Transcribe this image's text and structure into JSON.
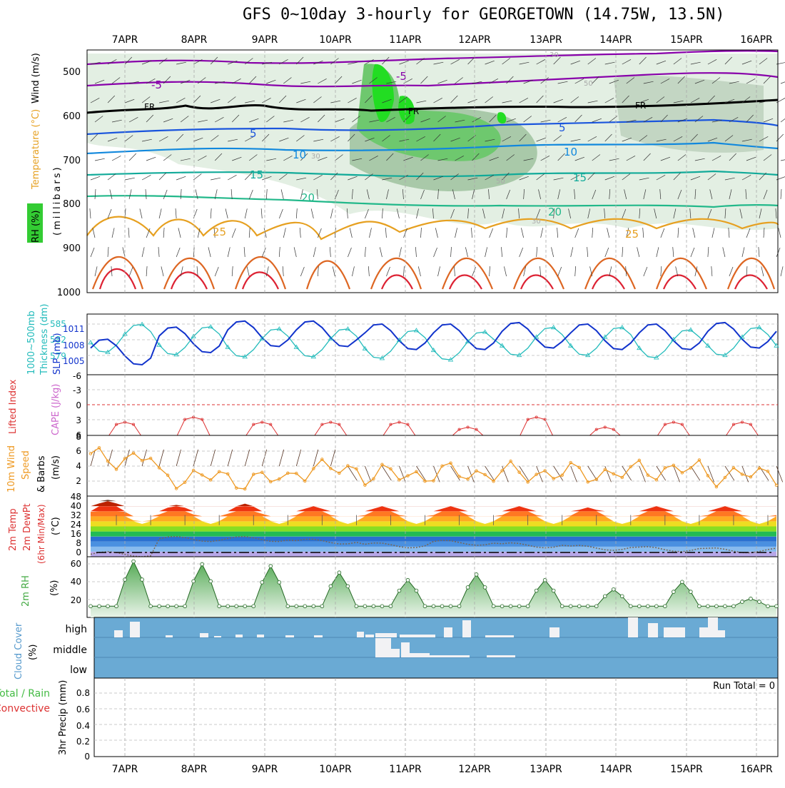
{
  "title": "GFS 0~10day 3-hourly for GEORGETOWN (14.75W, 13.5N)",
  "dates": [
    "7APR",
    "8APR",
    "9APR",
    "10APR",
    "11APR",
    "12APR",
    "13APR",
    "14APR",
    "15APR",
    "16APR"
  ],
  "run_total": "Run Total = 0",
  "colors": {
    "rh_green": "#33cc33",
    "rh_light": "#cfe8cf",
    "temp_purple": "#8800aa",
    "temp_blue": "#1a55dd",
    "temp_cyan": "#1188dd",
    "temp_teal": "#11aa99",
    "temp_orange": "#e6a020",
    "temp_red": "#dd2233",
    "slp_blue": "#1133cc",
    "thickness_cyan": "#22bbbb",
    "li_red": "#dd3333",
    "wind_orange": "#ee9922",
    "cloud_blue": "#6aaad4",
    "rh2m_green": "#44aa44"
  },
  "panels": {
    "upper": {
      "ylabel_rh": "RH (%)",
      "ylabel_temp": "Temperature (°C)",
      "ylabel_wind": "Wind (m/s)",
      "ylabel_units": "(millibars)",
      "yticks": [
        "500",
        "600",
        "700",
        "800",
        "900",
        "1000"
      ],
      "contour_labels": [
        "-5",
        "-5",
        "FR",
        "FR",
        "FR",
        "5",
        "5",
        "10",
        "10",
        "15",
        "15",
        "20",
        "20",
        "25",
        "25",
        "30",
        "30",
        "30",
        "50",
        "50"
      ]
    },
    "slp": {
      "ylabel_a": "1000~500mb",
      "ylabel_b": "Thickness (dm)",
      "ylabel_c": "SLP (mb)",
      "left_ticks": [
        "585",
        "582",
        "579"
      ],
      "right_ticks": [
        "1011",
        "1008",
        "1005"
      ]
    },
    "li": {
      "ylabel_a": "Lifted Index",
      "ylabel_b": "CAPE (J/kg)",
      "ticks": [
        "-6",
        "-3",
        "0",
        "3",
        "6"
      ]
    },
    "wind10": {
      "ylabel_a": "10m Wind",
      "ylabel_b": "Speed",
      "ylabel_c": "& Barbs",
      "ylabel_d": "(m/s)",
      "ticks": [
        "8",
        "6",
        "4",
        "2"
      ]
    },
    "temp2m": {
      "ylabel_a": "2m Temp",
      "ylabel_b": "2m DewPt",
      "ylabel_c": "(6hr Min/Max)",
      "ylabel_d": "(°C)",
      "ticks": [
        "48",
        "40",
        "32",
        "24",
        "16",
        "8",
        "0"
      ]
    },
    "rh2m": {
      "ylabel_a": "2m RH",
      "ylabel_b": "(%)",
      "ticks": [
        "60",
        "40",
        "20"
      ]
    },
    "cloud": {
      "ylabel_a": "Cloud Cover",
      "ylabel_b": "(%)",
      "levels": [
        "high",
        "middle",
        "low"
      ]
    },
    "precip": {
      "ylabel_a": "Total / Rain",
      "ylabel_b": "Convective",
      "ylabel_c": "3hr Precip (mm)",
      "ticks": [
        "0.8",
        "0.6",
        "0.4",
        "0.2",
        "0"
      ]
    }
  },
  "chart_data": [
    {
      "type": "line",
      "title": "1000~500mb Thickness (dm) / SLP (mb)",
      "x": [
        "7APR",
        "8APR",
        "9APR",
        "10APR",
        "11APR",
        "12APR",
        "13APR",
        "14APR",
        "15APR",
        "16APR"
      ],
      "series": [
        {
          "name": "SLP (mb)",
          "values": [
            1005.5,
            1009.5,
            1011.5,
            1011.5,
            1010.5,
            1010.5,
            1011,
            1010.5,
            1010.5,
            1011
          ]
        },
        {
          "name": "1000~500mb Thickness (dm)",
          "values": [
            585.3,
            584.5,
            583.8,
            583.8,
            583.3,
            582.8,
            584.3,
            584.3,
            583.5,
            584.3
          ]
        }
      ]
    },
    {
      "type": "line",
      "title": "Lifted Index",
      "x": [
        "7APR",
        "8APR",
        "9APR",
        "10APR",
        "11APR",
        "12APR",
        "13APR",
        "14APR",
        "15APR",
        "16APR"
      ],
      "series": [
        {
          "name": "Lifted Index",
          "values": [
            5,
            4,
            5,
            5,
            5,
            6,
            4,
            6,
            5,
            5
          ]
        }
      ],
      "ylim": [
        -6,
        6
      ]
    },
    {
      "type": "line",
      "title": "10m Wind Speed (m/s)",
      "x": [
        "7APR",
        "8APR",
        "9APR",
        "10APR",
        "11APR",
        "12APR",
        "13APR",
        "14APR",
        "15APR",
        "16APR"
      ],
      "series": [
        {
          "name": "10m Wind Speed",
          "values": [
            5,
            2.5,
            2.2,
            3.5,
            2.8,
            3,
            3,
            3,
            3.5,
            2.8
          ]
        }
      ],
      "ylim": [
        0,
        8
      ]
    },
    {
      "type": "area",
      "title": "2m Temp (°C)",
      "x": [
        "7APR",
        "8APR",
        "9APR",
        "10APR",
        "11APR",
        "12APR",
        "13APR",
        "14APR",
        "15APR",
        "16APR"
      ],
      "series": [
        {
          "name": "2m Temp",
          "values": [
            45,
            41,
            42,
            40,
            40,
            40,
            40,
            39,
            40,
            40
          ]
        },
        {
          "name": "2m DewPt",
          "values": [
            2,
            14,
            14,
            12,
            9,
            11,
            9,
            7,
            6,
            5
          ]
        }
      ],
      "ylim": [
        0,
        48
      ]
    },
    {
      "type": "area",
      "title": "2m RH (%)",
      "x": [
        "7APR",
        "8APR",
        "9APR",
        "10APR",
        "11APR",
        "12APR",
        "13APR",
        "14APR",
        "15APR",
        "16APR"
      ],
      "series": [
        {
          "name": "2m RH",
          "values": [
            60,
            57,
            55,
            48,
            40,
            46,
            40,
            30,
            38,
            20
          ]
        }
      ],
      "ylim": [
        0,
        65
      ]
    },
    {
      "type": "line",
      "title": "3hr Precip (mm)",
      "x": [
        "7APR",
        "8APR",
        "9APR",
        "10APR",
        "11APR",
        "12APR",
        "13APR",
        "14APR",
        "15APR",
        "16APR"
      ],
      "series": [
        {
          "name": "Total / Rain",
          "values": [
            0,
            0,
            0,
            0,
            0,
            0,
            0,
            0,
            0,
            0
          ]
        }
      ],
      "ylim": [
        0,
        0.9
      ]
    }
  ]
}
